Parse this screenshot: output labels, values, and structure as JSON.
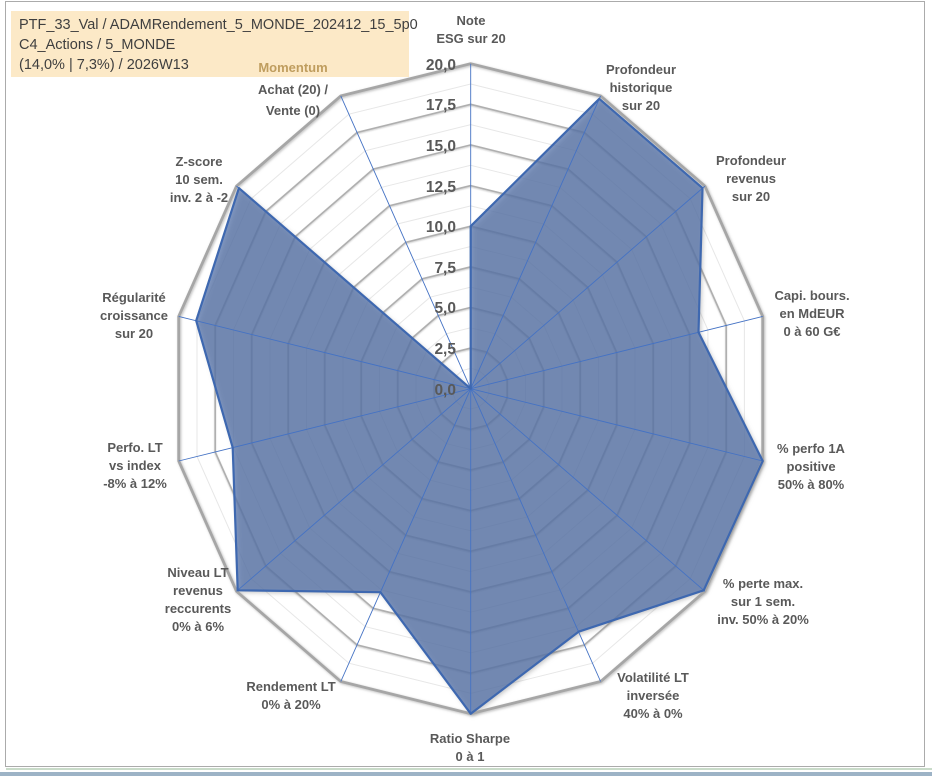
{
  "title_box": {
    "lines": [
      "PTF_33_Val / ADAMRendement_5_MONDE_202412_15_5p0",
      "C4_Actions / 5_MONDE",
      "(14,0% | 7,3%) / 2026W13"
    ]
  },
  "colors": {
    "series_fill": "#4472C4",
    "series_border": "#3E68B0",
    "axis_line": "#4472C4",
    "gridline_major": "#AFAFAF",
    "gridline_minor": "#E7E7E7",
    "label_text": "#595959",
    "title_box_bg": "#FCE9C7",
    "title_text": "#3F3F3F",
    "momentum_accent": "#BF9D5E"
  },
  "chart_data": {
    "type": "radar",
    "axis_max": 20,
    "axis_min": 0,
    "major_step": 2.5,
    "minor_step": 1.25,
    "grid": "on",
    "legend": "none",
    "tick_labels": [
      "0,0",
      "2,5",
      "5,0",
      "7,5",
      "10,0",
      "12,5",
      "15,0",
      "17,5",
      "20,0"
    ],
    "categories": [
      {
        "label": "Note ESG sur 20",
        "lines": [
          "Note",
          "ESG sur 20"
        ],
        "value": 10.0
      },
      {
        "label": "Profondeur historique sur 20",
        "lines": [
          "Profondeur",
          "historique",
          "sur 20"
        ],
        "value": 19.8
      },
      {
        "label": "Profondeur revenus sur 20",
        "lines": [
          "Profondeur",
          "revenus",
          "sur 20"
        ],
        "value": 19.8
      },
      {
        "label": "Capi. bours. en MdEUR 0 à 60 G€",
        "lines": [
          "Capi. bours.",
          "en MdEUR",
          "0 à 60 G€"
        ],
        "value": 15.6
      },
      {
        "label": "% perfo 1A positive 50% à 80%",
        "lines": [
          "% perfo 1A",
          "positive",
          "50% à 80%"
        ],
        "value": 20.0
      },
      {
        "label": "% perte max. sur 1 sem. inv. 50% à 20%",
        "lines": [
          "% perte max.",
          "sur 1 sem.",
          "inv. 50% à 20%"
        ],
        "value": 19.9
      },
      {
        "label": "Volatilité LT inversée 40% à 0%",
        "lines": [
          "Volatilité LT",
          "inversée",
          "40% à 0%"
        ],
        "value": 16.6
      },
      {
        "label": "Ratio Sharpe 0 à 1",
        "lines": [
          "Ratio Sharpe",
          "0 à 1"
        ],
        "value": 20.0
      },
      {
        "label": "Rendement LT 0% à 20%",
        "lines": [
          "Rendement LT",
          "0% à 20%"
        ],
        "value": 13.9
      },
      {
        "label": "Niveau LT revenus reccurents 0% à 6%",
        "lines": [
          "Niveau LT",
          "revenus",
          "reccurents",
          "0% à 6%"
        ],
        "value": 19.9
      },
      {
        "label": "Perfo. LT vs index -8% à 12%",
        "lines": [
          "Perfo. LT",
          "vs index",
          "-8% à 12%"
        ],
        "value": 16.3
      },
      {
        "label": "Régularité croissance sur 20",
        "lines": [
          "Régularité",
          "croissance",
          "sur 20"
        ],
        "value": 18.8
      },
      {
        "label": "Z-score 10 sem. inv. 2 à -2",
        "lines": [
          "Z-score",
          "10 sem.",
          "inv. 2 à -2"
        ],
        "value": 19.8
      },
      {
        "label": "Momentum Achat (20) / Vente (0)",
        "lines": [
          "Momentum",
          "Achat (20) /",
          "Vente (0)"
        ],
        "value": 0.0,
        "accent_first_line": true
      }
    ]
  }
}
